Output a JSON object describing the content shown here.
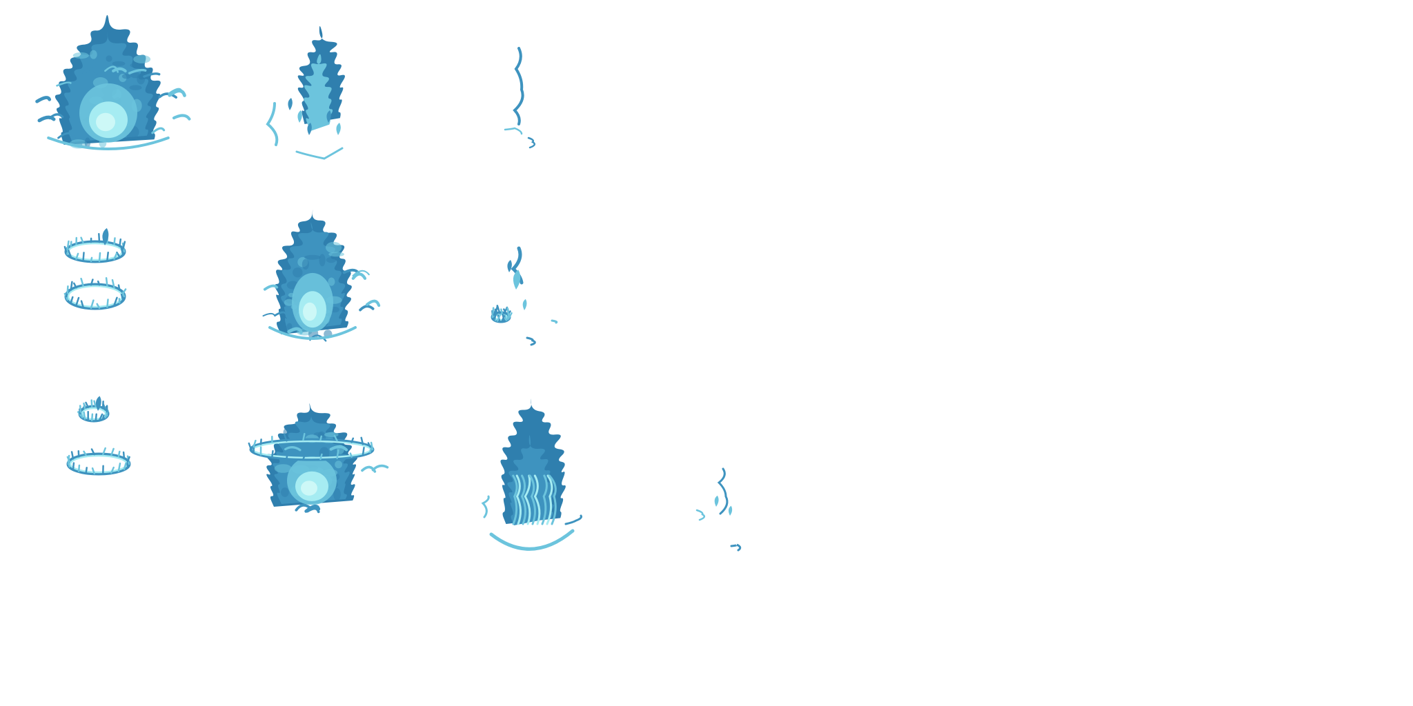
{
  "sprite_sheet": {
    "background": "#ffffff",
    "palette": {
      "deep": "#2f7fae",
      "mid": "#3e93bf",
      "light": "#6cc4dd",
      "pale": "#a6ecf2",
      "core": "#cdf8f7"
    },
    "frames": [
      {
        "id": "r1c1",
        "kind": "flame-full-burst"
      },
      {
        "id": "r1c2",
        "kind": "flame-dissipating"
      },
      {
        "id": "r1c3",
        "kind": "flame-wisp"
      },
      {
        "id": "r2c1",
        "kind": "rings-stacked"
      },
      {
        "id": "r2c2",
        "kind": "flame-full"
      },
      {
        "id": "r2c3",
        "kind": "flame-fragments"
      },
      {
        "id": "r3c1",
        "kind": "rings-small"
      },
      {
        "id": "r3c2",
        "kind": "flame-ring-burst"
      },
      {
        "id": "r3c3",
        "kind": "flame-rising"
      },
      {
        "id": "r3c4",
        "kind": "flame-wisp-small"
      }
    ]
  }
}
